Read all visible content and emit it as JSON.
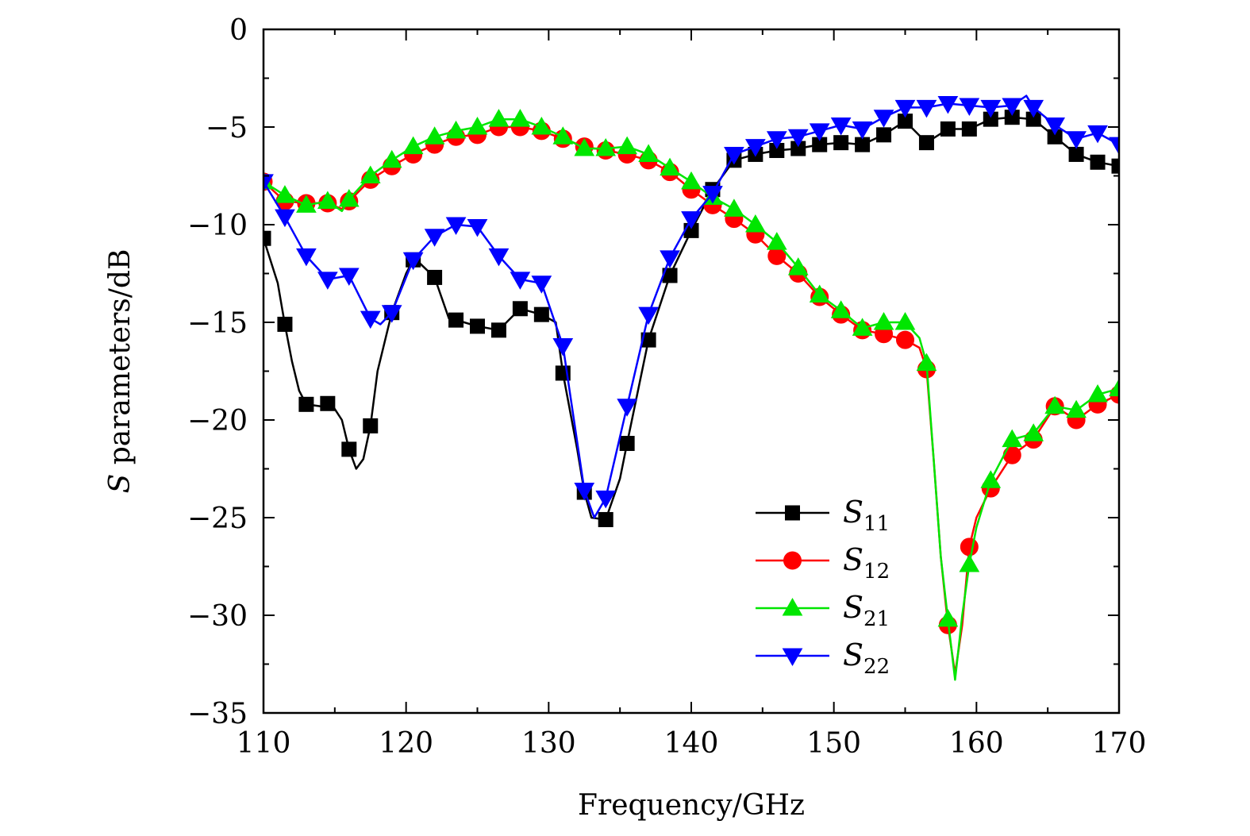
{
  "chart_data": {
    "type": "line",
    "xlabel": "Frequency/GHz",
    "ylabel": "S parameters/dB",
    "ylabel_italic_part": "S",
    "ylabel_rest": " parameters/dB",
    "xlim": [
      110,
      170
    ],
    "ylim": [
      -35,
      0
    ],
    "x_ticks": [
      110,
      120,
      130,
      140,
      150,
      160,
      170
    ],
    "y_ticks": [
      0,
      -5,
      -10,
      -15,
      -20,
      -25,
      -30,
      -35
    ],
    "x_tick_labels": [
      "110",
      "120",
      "130",
      "140",
      "150",
      "160",
      "170"
    ],
    "y_tick_labels": [
      "0",
      "−5",
      "−10",
      "−15",
      "−20",
      "−25",
      "−30",
      "−35"
    ],
    "grid": false,
    "legend_placement": "lower-right",
    "series": [
      {
        "name": "S11",
        "legend_main": "S",
        "legend_sub": "11",
        "color": "#000000",
        "marker": "square",
        "x": [
          110,
          111,
          111.5,
          112,
          112.5,
          113,
          114,
          114.7,
          115.5,
          116,
          116.5,
          117,
          117.5,
          118,
          119,
          120,
          120.5,
          121,
          122,
          123,
          123.6,
          125,
          126.5,
          128,
          129.5,
          130.5,
          131,
          132,
          132.5,
          133,
          134,
          135,
          135.5,
          137,
          138.5,
          140,
          141.5,
          143,
          144.5,
          146,
          147.5,
          149,
          150.5,
          152,
          153.5,
          155,
          156.5,
          158,
          159.5,
          161,
          162.5,
          164,
          165.5,
          167,
          168.5,
          170
        ],
        "y": [
          -10.7,
          -13.0,
          -15.1,
          -17.0,
          -18.5,
          -19.2,
          -19.3,
          -19.1,
          -20.0,
          -21.5,
          -22.5,
          -22.0,
          -20.3,
          -17.5,
          -14.5,
          -12.5,
          -11.8,
          -12.0,
          -12.7,
          -14.8,
          -14.9,
          -15.2,
          -15.4,
          -14.3,
          -14.6,
          -15.0,
          -17.6,
          -21.5,
          -23.7,
          -25.0,
          -25.1,
          -23.0,
          -21.2,
          -15.9,
          -12.6,
          -10.3,
          -8.2,
          -6.7,
          -6.4,
          -6.2,
          -6.1,
          -5.9,
          -5.8,
          -5.9,
          -5.4,
          -4.7,
          -5.8,
          -5.1,
          -5.1,
          -4.6,
          -4.5,
          -4.6,
          -5.5,
          -6.4,
          -6.8,
          -7.0
        ],
        "marker_x": [
          110,
          111.5,
          113,
          114.5,
          116,
          117.5,
          119,
          120.5,
          122,
          123.5,
          125,
          126.5,
          128,
          129.5,
          131,
          132.5,
          134,
          135.5,
          137,
          138.5,
          140,
          141.5,
          143,
          144.5,
          146,
          147.5,
          149,
          150.5,
          152,
          153.5,
          155,
          156.5,
          158,
          159.5,
          161,
          162.5,
          164,
          165.5,
          167,
          168.5,
          170
        ]
      },
      {
        "name": "S12",
        "legend_main": "S",
        "legend_sub": "12",
        "color": "#ff0000",
        "marker": "circle",
        "x": [
          110,
          111.5,
          113,
          114.5,
          115.5,
          116,
          117.5,
          119,
          120.5,
          122,
          123.5,
          125,
          126.5,
          128,
          129.5,
          131,
          132.5,
          134,
          135.5,
          137,
          138.5,
          140,
          141.5,
          143,
          144.5,
          146,
          147.5,
          149,
          150.5,
          152,
          153.5,
          155,
          156,
          156.5,
          157,
          157.5,
          158,
          158.5,
          159,
          159.5,
          160,
          161,
          162.5,
          164,
          165.5,
          167,
          168.5,
          170
        ],
        "y": [
          -7.8,
          -8.8,
          -8.9,
          -8.9,
          -9.2,
          -8.8,
          -7.7,
          -7.0,
          -6.4,
          -5.9,
          -5.5,
          -5.4,
          -5.0,
          -5.0,
          -5.2,
          -5.6,
          -6.0,
          -6.2,
          -6.4,
          -6.7,
          -7.3,
          -8.2,
          -9.0,
          -9.7,
          -10.5,
          -11.6,
          -12.5,
          -13.7,
          -14.6,
          -15.4,
          -15.6,
          -15.9,
          -16.3,
          -17.4,
          -22.0,
          -27.0,
          -30.5,
          -33.0,
          -30.5,
          -26.5,
          -25.0,
          -23.5,
          -21.8,
          -21.0,
          -19.3,
          -20.0,
          -19.2,
          -18.7
        ],
        "marker_x": [
          110,
          111.5,
          113,
          114.5,
          116,
          117.5,
          119,
          120.5,
          122,
          123.5,
          125,
          126.5,
          128,
          129.5,
          131,
          132.5,
          134,
          135.5,
          137,
          138.5,
          140,
          141.5,
          143,
          144.5,
          146,
          147.5,
          149,
          150.5,
          152,
          153.5,
          155,
          156.5,
          158,
          159.5,
          161,
          162.5,
          164,
          165.5,
          167,
          168.5,
          170
        ]
      },
      {
        "name": "S21",
        "legend_main": "S",
        "legend_sub": "21",
        "color": "#00e600",
        "marker": "triangle-up",
        "x": [
          110,
          111.5,
          113,
          114.5,
          115.5,
          116,
          117.5,
          119,
          120.5,
          122,
          123.5,
          125,
          126.5,
          128,
          129.5,
          131,
          132.5,
          134,
          135.5,
          137,
          138.5,
          140,
          141.5,
          143,
          144.5,
          146,
          147.5,
          149,
          150.5,
          152,
          153.5,
          155,
          156,
          156.5,
          157,
          157.5,
          158,
          158.5,
          159,
          159.5,
          160,
          161,
          162.5,
          164,
          165.5,
          167,
          168.5,
          170
        ],
        "y": [
          -7.8,
          -8.5,
          -9.0,
          -8.8,
          -9.3,
          -8.7,
          -7.5,
          -6.7,
          -6.0,
          -5.5,
          -5.2,
          -5.0,
          -4.6,
          -4.6,
          -5.0,
          -5.5,
          -6.1,
          -6.1,
          -6.0,
          -6.4,
          -7.1,
          -7.8,
          -8.6,
          -9.2,
          -10.0,
          -10.9,
          -12.2,
          -13.6,
          -14.4,
          -15.3,
          -15.0,
          -15.0,
          -15.8,
          -17.1,
          -22.0,
          -27.0,
          -30.2,
          -33.3,
          -30.0,
          -27.4,
          -25.5,
          -23.1,
          -21.0,
          -20.7,
          -19.3,
          -19.5,
          -18.7,
          -18.4
        ],
        "marker_x": [
          110,
          111.5,
          113,
          114.5,
          116,
          117.5,
          119,
          120.5,
          122,
          123.5,
          125,
          126.5,
          128,
          129.5,
          131,
          132.5,
          134,
          135.5,
          137,
          138.5,
          140,
          141.5,
          143,
          144.5,
          146,
          147.5,
          149,
          150.5,
          152,
          153.5,
          155,
          156.5,
          158,
          159.5,
          161,
          162.5,
          164,
          165.5,
          167,
          168.5,
          170
        ]
      },
      {
        "name": "S22",
        "legend_main": "S",
        "legend_sub": "22",
        "color": "#0000ff",
        "marker": "triangle-down",
        "x": [
          110,
          111.5,
          113,
          114.5,
          116,
          117.5,
          118.2,
          119,
          120.5,
          122,
          123.5,
          125,
          126.5,
          128,
          129.5,
          131,
          132.5,
          133.2,
          134,
          135.5,
          137,
          138.5,
          140,
          141.5,
          143,
          144.5,
          146,
          147.5,
          149,
          150.5,
          152,
          153.5,
          155,
          156.5,
          158,
          159.5,
          161,
          162.5,
          163.5,
          164,
          165.5,
          167,
          168.5,
          170
        ],
        "y": [
          -7.8,
          -9.6,
          -11.6,
          -12.8,
          -12.6,
          -14.8,
          -15.1,
          -14.5,
          -11.8,
          -10.6,
          -10.0,
          -10.1,
          -11.6,
          -12.8,
          -13.0,
          -16.2,
          -23.6,
          -25.0,
          -24.0,
          -19.3,
          -14.6,
          -11.7,
          -9.7,
          -8.4,
          -6.4,
          -6.0,
          -5.6,
          -5.5,
          -5.2,
          -4.9,
          -5.1,
          -4.5,
          -4.0,
          -4.0,
          -3.8,
          -3.9,
          -4.0,
          -3.9,
          -3.4,
          -4.0,
          -4.9,
          -5.6,
          -5.3,
          -5.9
        ],
        "marker_x": [
          110,
          111.5,
          113,
          114.5,
          116,
          117.5,
          119,
          120.5,
          122,
          123.5,
          125,
          126.5,
          128,
          129.5,
          131,
          132.5,
          134,
          135.5,
          137,
          138.5,
          140,
          141.5,
          143,
          144.5,
          146,
          147.5,
          149,
          150.5,
          152,
          153.5,
          155,
          156.5,
          158,
          159.5,
          161,
          162.5,
          164,
          165.5,
          167,
          168.5,
          170
        ]
      }
    ]
  }
}
